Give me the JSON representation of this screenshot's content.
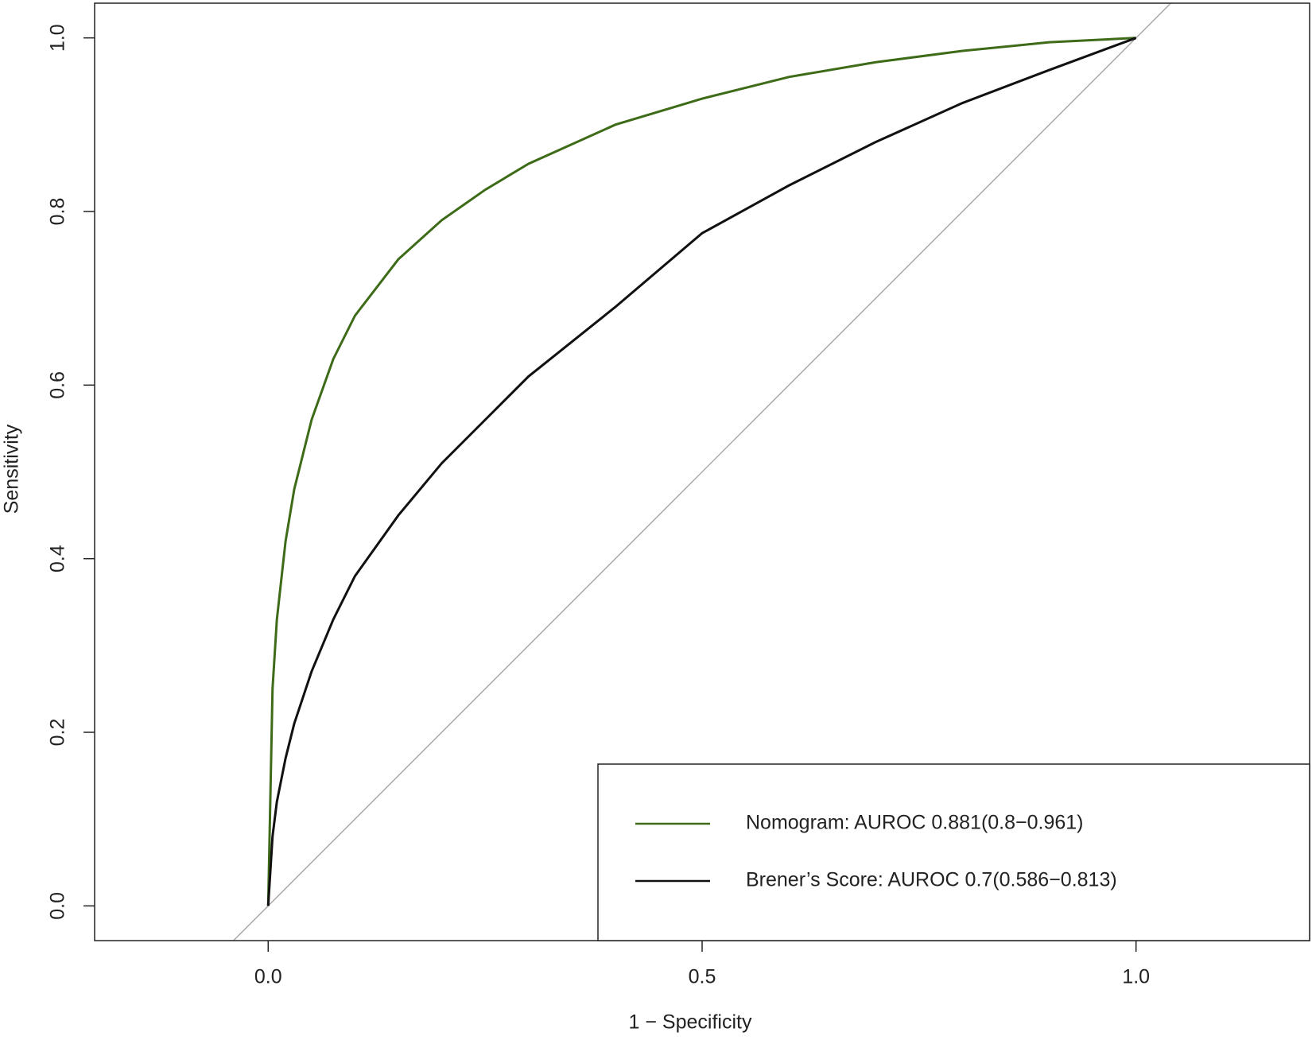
{
  "chart_data": {
    "type": "line",
    "xlabel": "1 − Specificity",
    "ylabel": "Sensitivity",
    "xlim": [
      -0.2,
      1.2
    ],
    "ylim": [
      -0.04,
      1.04
    ],
    "xticks": [
      {
        "value": 0,
        "label": "0.0"
      },
      {
        "value": 0.5,
        "label": "0.5"
      },
      {
        "value": 1,
        "label": "1.0"
      }
    ],
    "yticks": [
      {
        "value": 0,
        "label": "0.0"
      },
      {
        "value": 0.2,
        "label": "0.2"
      },
      {
        "value": 0.4,
        "label": "0.4"
      },
      {
        "value": 0.6,
        "label": "0.6"
      },
      {
        "value": 0.8,
        "label": "0.8"
      },
      {
        "value": 1,
        "label": "1.0"
      }
    ],
    "diagonal": true,
    "legend": "bottom-right",
    "series": [
      {
        "name": "Nomogram: AUROC 0.881(0.8−0.961)",
        "color": "#3d6b17",
        "x": [
          0,
          0.002,
          0.005,
          0.01,
          0.02,
          0.03,
          0.05,
          0.075,
          0.1,
          0.15,
          0.2,
          0.25,
          0.3,
          0.4,
          0.5,
          0.6,
          0.7,
          0.8,
          0.9,
          1
        ],
        "values": [
          0,
          0.1,
          0.25,
          0.33,
          0.42,
          0.48,
          0.56,
          0.63,
          0.68,
          0.745,
          0.79,
          0.825,
          0.855,
          0.9,
          0.93,
          0.955,
          0.972,
          0.985,
          0.995,
          1
        ]
      },
      {
        "name": "Brener’s Score: AUROC 0.7(0.586−0.813)",
        "color": "#111111",
        "x": [
          0,
          0.005,
          0.01,
          0.02,
          0.03,
          0.05,
          0.075,
          0.1,
          0.15,
          0.2,
          0.25,
          0.3,
          0.4,
          0.5,
          0.6,
          0.7,
          0.8,
          0.9,
          1
        ],
        "values": [
          0,
          0.08,
          0.12,
          0.17,
          0.21,
          0.27,
          0.33,
          0.38,
          0.45,
          0.51,
          0.56,
          0.61,
          0.69,
          0.775,
          0.83,
          0.88,
          0.925,
          0.963,
          1
        ]
      }
    ]
  }
}
